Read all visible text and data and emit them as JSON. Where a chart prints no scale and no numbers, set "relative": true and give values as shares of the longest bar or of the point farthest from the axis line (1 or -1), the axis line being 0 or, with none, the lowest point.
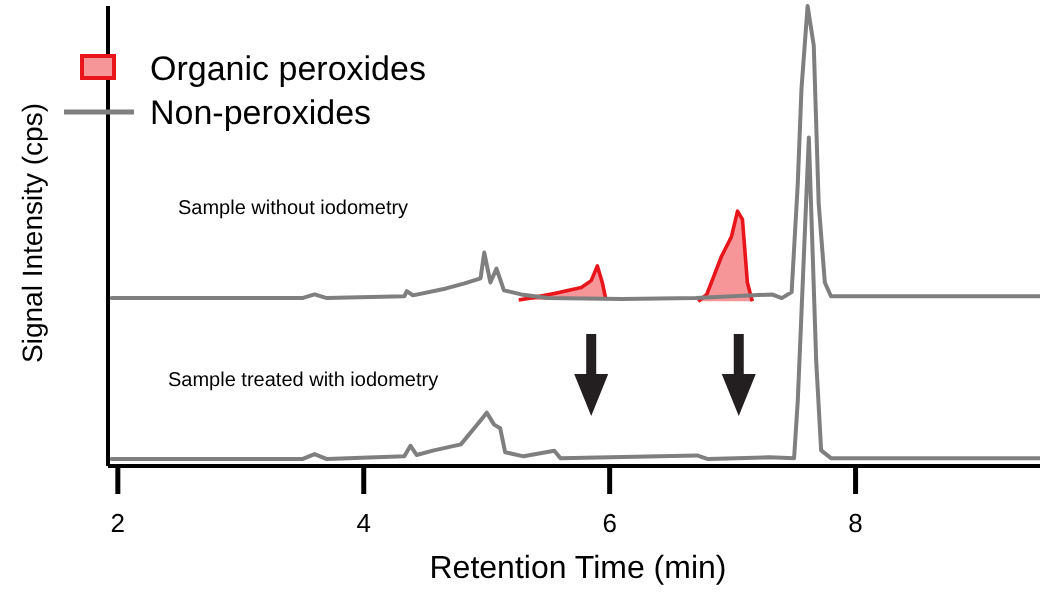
{
  "chart_data": {
    "type": "line",
    "xlabel": "Retention Time (min)",
    "ylabel": "Signal Intensity (cps)",
    "relative": true,
    "xlim": [
      1.92,
      9.5
    ],
    "xticks": [
      2,
      4,
      6,
      8
    ],
    "legend": "top left",
    "annotations": [
      "Sample without iodometry",
      "Sample treated with iodometry"
    ],
    "series": [
      {
        "name": "Organic peroxides",
        "color": "#e8151b",
        "type": "area",
        "x": [
          5.26,
          5.35,
          5.55,
          5.77,
          5.85,
          5.9,
          5.94,
          5.97,
          null,
          6.72,
          6.79,
          6.91,
          6.99,
          7.04,
          7.08,
          7.12,
          7.16
        ],
        "values": [
          0.361,
          0.365,
          0.375,
          0.388,
          0.403,
          0.435,
          0.399,
          0.361,
          null,
          0.358,
          0.373,
          0.456,
          0.498,
          0.554,
          0.536,
          0.399,
          0.358
        ]
      },
      {
        "name": "Non-peroxides",
        "color": "#7f7f7f",
        "x": [
          1.95,
          3.5,
          3.6,
          3.7,
          4.33,
          4.35,
          4.4,
          4.67,
          4.82,
          4.95,
          4.98,
          5.03,
          5.08,
          5.14,
          5.28,
          5.5,
          6.1,
          6.7,
          7.32,
          7.4,
          7.48,
          7.53,
          7.56,
          7.61,
          7.66,
          7.7,
          7.75,
          7.8,
          9.5
        ],
        "values": [
          0.365,
          0.365,
          0.373,
          0.365,
          0.369,
          0.38,
          0.371,
          0.386,
          0.397,
          0.408,
          0.464,
          0.399,
          0.429,
          0.382,
          0.373,
          0.365,
          0.363,
          0.365,
          0.373,
          0.365,
          0.378,
          0.614,
          0.82,
          1,
          0.914,
          0.571,
          0.399,
          0.369,
          0.369
        ]
      },
      {
        "color": "#7f7f7f",
        "x": [
          1.95,
          3.5,
          3.6,
          3.7,
          4.33,
          4.38,
          4.43,
          4.57,
          4.79,
          4.95,
          5.0,
          5.06,
          5.11,
          5.15,
          5.3,
          5.55,
          5.6,
          6.71,
          6.8,
          7.3,
          7.5,
          7.53,
          7.62,
          7.68,
          7.72,
          7.8,
          9.5
        ],
        "values": [
          0.015,
          0.015,
          0.026,
          0.015,
          0.021,
          0.044,
          0.024,
          0.034,
          0.047,
          0.099,
          0.116,
          0.09,
          0.082,
          0.03,
          0.021,
          0.033,
          0.017,
          0.023,
          0.015,
          0.019,
          0.017,
          0.142,
          0.714,
          0.227,
          0.034,
          0.017,
          0.017
        ]
      }
    ]
  }
}
